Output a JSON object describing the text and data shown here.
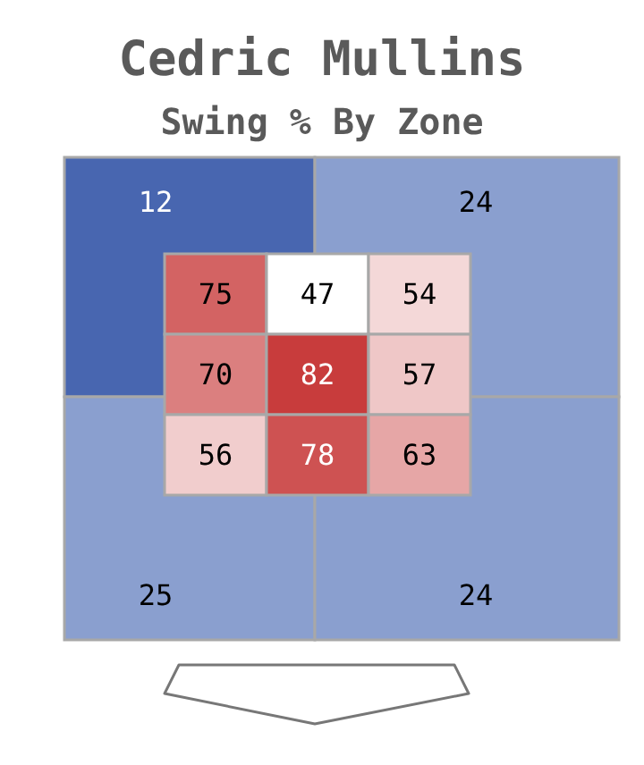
{
  "chart_data": [
    {
      "type": "other",
      "title": "Cedric Mullins",
      "subtitle": "Swing % By Zone",
      "values": [
        12,
        24,
        25,
        24
      ],
      "data_labels": true,
      "colors": [
        "#4866b0",
        "#8a9fcf",
        "#8a9fcf",
        "#8a9fcf"
      ]
    },
    {
      "type": "heatmap",
      "categories": [
        null,
        null,
        null
      ],
      "y_categories": [
        null,
        null,
        null
      ],
      "data_labels": true,
      "cells": [
        [
          75,
          47,
          54
        ],
        [
          70,
          82,
          57
        ],
        [
          56,
          78,
          63
        ]
      ]
    }
  ]
}
